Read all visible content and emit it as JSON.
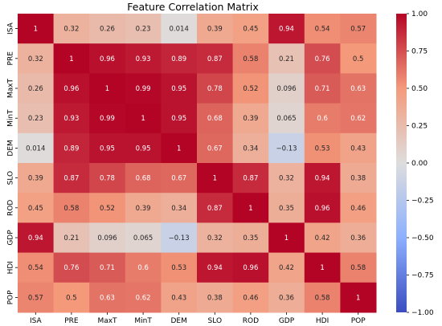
{
  "chart_data": {
    "type": "heatmap",
    "title": "Feature Correlation Matrix",
    "x_labels": [
      "ISA",
      "PRE",
      "MaxT",
      "MinT",
      "DEM",
      "SLO",
      "ROD",
      "GDP",
      "HDI",
      "POP"
    ],
    "y_labels": [
      "ISA",
      "PRE",
      "MaxT",
      "MinT",
      "DEM",
      "SLO",
      "ROD",
      "GDP",
      "HDI",
      "POP"
    ],
    "values": [
      [
        1,
        0.32,
        0.26,
        0.23,
        0.014,
        0.39,
        0.45,
        0.94,
        0.54,
        0.57
      ],
      [
        0.32,
        1,
        0.96,
        0.93,
        0.89,
        0.87,
        0.58,
        0.21,
        0.76,
        0.5
      ],
      [
        0.26,
        0.96,
        1,
        0.99,
        0.95,
        0.78,
        0.52,
        0.096,
        0.71,
        0.63
      ],
      [
        0.23,
        0.93,
        0.99,
        1,
        0.95,
        0.68,
        0.39,
        0.065,
        0.6,
        0.62
      ],
      [
        0.014,
        0.89,
        0.95,
        0.95,
        1,
        0.67,
        0.34,
        -0.13,
        0.53,
        0.43
      ],
      [
        0.39,
        0.87,
        0.78,
        0.68,
        0.67,
        1,
        0.87,
        0.32,
        0.94,
        0.38
      ],
      [
        0.45,
        0.58,
        0.52,
        0.39,
        0.34,
        0.87,
        1,
        0.35,
        0.96,
        0.46
      ],
      [
        0.94,
        0.21,
        0.096,
        0.065,
        -0.13,
        0.32,
        0.35,
        1,
        0.42,
        0.36
      ],
      [
        0.54,
        0.76,
        0.71,
        0.6,
        0.53,
        0.94,
        0.96,
        0.42,
        1,
        0.58
      ],
      [
        0.57,
        0.5,
        0.63,
        0.62,
        0.43,
        0.38,
        0.46,
        0.36,
        0.58,
        1
      ]
    ],
    "colorbar": {
      "min": -1.0,
      "max": 1.0,
      "ticks": [
        "1.00",
        "0.75",
        "0.50",
        "0.25",
        "0.00",
        "-0.25",
        "-0.50",
        "-0.75",
        "-1.00"
      ],
      "colormap": "coolwarm"
    },
    "colors": {
      "low": "#3b4cc0",
      "mid": "#dddddd",
      "high": "#b40426"
    }
  }
}
